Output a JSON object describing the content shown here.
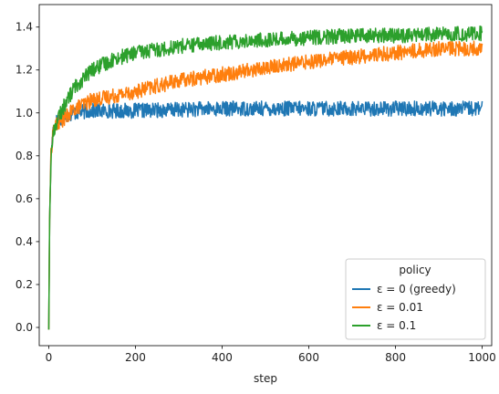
{
  "chart_data": {
    "type": "line",
    "title": "",
    "xlabel": "step",
    "ylabel": "",
    "xlim": [
      -22,
      1022
    ],
    "ylim": [
      -0.085,
      1.505
    ],
    "xticks": [
      0,
      200,
      400,
      600,
      800,
      1000
    ],
    "yticks": [
      0.0,
      0.2,
      0.4,
      0.6,
      0.8,
      1.0,
      1.2,
      1.4
    ],
    "grid": false,
    "legend": {
      "title": "policy",
      "placement": "lower-right"
    },
    "series": [
      {
        "name": "ε = 0 (greedy)",
        "color": "#1f77b4",
        "noise": 0.035,
        "points": [
          [
            0,
            -0.01
          ],
          [
            2,
            0.5
          ],
          [
            5,
            0.8
          ],
          [
            10,
            0.92
          ],
          [
            20,
            0.97
          ],
          [
            40,
            0.99
          ],
          [
            60,
            1.0
          ],
          [
            100,
            1.01
          ],
          [
            200,
            1.01
          ],
          [
            400,
            1.02
          ],
          [
            600,
            1.02
          ],
          [
            800,
            1.02
          ],
          [
            1000,
            1.02
          ]
        ]
      },
      {
        "name": "ε = 0.01",
        "color": "#ff7f0e",
        "noise": 0.035,
        "points": [
          [
            0,
            -0.01
          ],
          [
            2,
            0.5
          ],
          [
            5,
            0.8
          ],
          [
            10,
            0.92
          ],
          [
            20,
            0.95
          ],
          [
            40,
            0.98
          ],
          [
            60,
            1.02
          ],
          [
            100,
            1.06
          ],
          [
            200,
            1.1
          ],
          [
            300,
            1.15
          ],
          [
            400,
            1.18
          ],
          [
            500,
            1.21
          ],
          [
            600,
            1.24
          ],
          [
            700,
            1.26
          ],
          [
            800,
            1.28
          ],
          [
            900,
            1.3
          ],
          [
            1000,
            1.3
          ]
        ]
      },
      {
        "name": "ε = 0.1",
        "color": "#2ca02c",
        "noise": 0.035,
        "points": [
          [
            0,
            -0.01
          ],
          [
            2,
            0.5
          ],
          [
            5,
            0.78
          ],
          [
            10,
            0.9
          ],
          [
            20,
            0.97
          ],
          [
            40,
            1.05
          ],
          [
            60,
            1.12
          ],
          [
            100,
            1.2
          ],
          [
            150,
            1.25
          ],
          [
            200,
            1.28
          ],
          [
            300,
            1.31
          ],
          [
            400,
            1.33
          ],
          [
            500,
            1.34
          ],
          [
            600,
            1.35
          ],
          [
            700,
            1.36
          ],
          [
            800,
            1.36
          ],
          [
            1000,
            1.37
          ]
        ]
      }
    ]
  }
}
